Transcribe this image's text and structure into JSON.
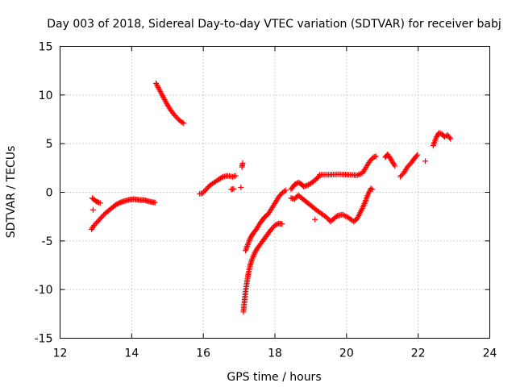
{
  "chart_data": {
    "type": "scatter",
    "title": "Day 003 of 2018, Sidereal Day-to-day VTEC variation (SDTVAR) for receiver babj",
    "xlabel": "GPS time / hours",
    "ylabel": "SDTVAR / TECUs",
    "xlim": [
      12,
      24
    ],
    "ylim": [
      -15,
      15
    ],
    "xticks": [
      12,
      14,
      16,
      18,
      20,
      22,
      24
    ],
    "yticks": [
      -15,
      -10,
      -5,
      0,
      5,
      10,
      15
    ],
    "grid": true,
    "marker": "plus",
    "color": "#ff0000",
    "segments": [
      {
        "name": "a1",
        "points": [
          [
            12.88,
            -3.8
          ],
          [
            12.95,
            -3.4
          ],
          [
            13.05,
            -3.0
          ],
          [
            13.15,
            -2.6
          ],
          [
            13.25,
            -2.2
          ],
          [
            13.35,
            -1.9
          ],
          [
            13.45,
            -1.6
          ],
          [
            13.55,
            -1.3
          ],
          [
            13.65,
            -1.1
          ],
          [
            13.75,
            -0.95
          ],
          [
            13.85,
            -0.85
          ],
          [
            13.95,
            -0.75
          ],
          [
            14.05,
            -0.7
          ],
          [
            14.15,
            -0.75
          ],
          [
            14.25,
            -0.8
          ],
          [
            14.35,
            -0.8
          ],
          [
            14.45,
            -0.9
          ],
          [
            14.55,
            -1.0
          ],
          [
            14.65,
            -1.05
          ]
        ]
      },
      {
        "name": "a2",
        "points": [
          [
            12.9,
            -0.6
          ],
          [
            12.96,
            -0.8
          ],
          [
            13.02,
            -0.95
          ],
          [
            13.08,
            -1.05
          ],
          [
            13.12,
            -1.1
          ]
        ]
      },
      {
        "name": "a3",
        "points": [
          [
            12.92,
            -1.8
          ]
        ]
      },
      {
        "name": "b",
        "points": [
          [
            14.68,
            11.2
          ],
          [
            14.78,
            10.5
          ],
          [
            14.88,
            9.8
          ],
          [
            14.98,
            9.1
          ],
          [
            15.08,
            8.5
          ],
          [
            15.18,
            8.0
          ],
          [
            15.28,
            7.6
          ],
          [
            15.38,
            7.25
          ],
          [
            15.45,
            7.1
          ]
        ]
      },
      {
        "name": "c",
        "points": [
          [
            15.9,
            -0.15
          ],
          [
            15.98,
            -0.1
          ],
          [
            16.08,
            0.3
          ],
          [
            16.18,
            0.7
          ],
          [
            16.3,
            1.0
          ],
          [
            16.42,
            1.3
          ],
          [
            16.55,
            1.6
          ],
          [
            16.68,
            1.7
          ],
          [
            16.82,
            1.6
          ],
          [
            16.9,
            1.7
          ]
        ]
      },
      {
        "name": "c2",
        "points": [
          [
            16.78,
            0.3
          ],
          [
            16.85,
            0.35
          ]
        ]
      },
      {
        "name": "d1",
        "points": [
          [
            17.08,
            2.6
          ],
          [
            17.1,
            3.0
          ]
        ]
      },
      {
        "name": "d2",
        "points": [
          [
            17.05,
            0.5
          ]
        ]
      },
      {
        "name": "e",
        "points": [
          [
            17.12,
            -12.3
          ],
          [
            17.15,
            -11.2
          ],
          [
            17.18,
            -10.2
          ],
          [
            17.22,
            -9.2
          ],
          [
            17.26,
            -8.3
          ],
          [
            17.3,
            -7.6
          ],
          [
            17.36,
            -6.9
          ],
          [
            17.44,
            -6.2
          ],
          [
            17.52,
            -5.7
          ],
          [
            17.6,
            -5.3
          ],
          [
            17.7,
            -4.8
          ],
          [
            17.8,
            -4.3
          ],
          [
            17.9,
            -3.8
          ],
          [
            18.0,
            -3.4
          ],
          [
            18.1,
            -3.2
          ],
          [
            18.2,
            -3.25
          ]
        ]
      },
      {
        "name": "f",
        "points": [
          [
            17.18,
            -6.0
          ],
          [
            17.24,
            -5.4
          ],
          [
            17.3,
            -4.8
          ],
          [
            17.38,
            -4.3
          ],
          [
            17.48,
            -3.8
          ],
          [
            17.58,
            -3.2
          ],
          [
            17.7,
            -2.6
          ],
          [
            17.82,
            -2.2
          ],
          [
            17.92,
            -1.6
          ],
          [
            18.02,
            -1.0
          ],
          [
            18.12,
            -0.4
          ],
          [
            18.22,
            0.0
          ],
          [
            18.3,
            0.2
          ]
        ]
      },
      {
        "name": "g",
        "points": [
          [
            18.45,
            0.3
          ],
          [
            18.55,
            0.8
          ],
          [
            18.65,
            1.0
          ],
          [
            18.72,
            0.9
          ],
          [
            18.8,
            0.6
          ],
          [
            18.9,
            0.7
          ],
          [
            19.0,
            0.9
          ],
          [
            19.1,
            1.2
          ],
          [
            19.2,
            1.5
          ],
          [
            19.25,
            1.8
          ],
          [
            19.5,
            1.8
          ],
          [
            19.8,
            1.85
          ],
          [
            20.1,
            1.8
          ],
          [
            20.3,
            1.75
          ],
          [
            20.45,
            2.0
          ],
          [
            20.55,
            2.6
          ],
          [
            20.65,
            3.2
          ],
          [
            20.75,
            3.6
          ],
          [
            20.82,
            3.7
          ]
        ]
      },
      {
        "name": "h",
        "points": [
          [
            18.45,
            -0.6
          ],
          [
            18.55,
            -0.7
          ],
          [
            18.65,
            -0.3
          ],
          [
            18.75,
            -0.6
          ],
          [
            18.85,
            -0.9
          ],
          [
            18.95,
            -1.2
          ],
          [
            19.05,
            -1.5
          ],
          [
            19.15,
            -1.8
          ],
          [
            19.3,
            -2.2
          ],
          [
            19.45,
            -2.6
          ],
          [
            19.55,
            -3.0
          ],
          [
            19.65,
            -2.7
          ],
          [
            19.75,
            -2.4
          ],
          [
            19.9,
            -2.3
          ],
          [
            20.05,
            -2.6
          ],
          [
            20.2,
            -3.0
          ],
          [
            20.3,
            -2.7
          ],
          [
            20.42,
            -1.8
          ],
          [
            20.52,
            -1.0
          ],
          [
            20.6,
            -0.2
          ],
          [
            20.68,
            0.4
          ],
          [
            20.72,
            0.3
          ]
        ]
      },
      {
        "name": "h2",
        "points": [
          [
            19.12,
            -2.8
          ]
        ]
      },
      {
        "name": "i",
        "points": [
          [
            21.08,
            3.6
          ],
          [
            21.15,
            3.9
          ],
          [
            21.22,
            3.5
          ],
          [
            21.3,
            3.0
          ],
          [
            21.35,
            2.7
          ]
        ]
      },
      {
        "name": "j",
        "points": [
          [
            21.5,
            1.6
          ],
          [
            21.6,
            2.0
          ],
          [
            21.7,
            2.6
          ],
          [
            21.8,
            3.0
          ],
          [
            21.9,
            3.5
          ],
          [
            21.98,
            3.85
          ]
        ]
      },
      {
        "name": "k",
        "points": [
          [
            22.2,
            3.2
          ]
        ]
      },
      {
        "name": "l",
        "points": [
          [
            22.42,
            4.8
          ],
          [
            22.5,
            5.6
          ],
          [
            22.58,
            6.1
          ],
          [
            22.66,
            6.0
          ],
          [
            22.74,
            5.7
          ],
          [
            22.82,
            5.9
          ],
          [
            22.9,
            5.5
          ]
        ]
      }
    ]
  }
}
